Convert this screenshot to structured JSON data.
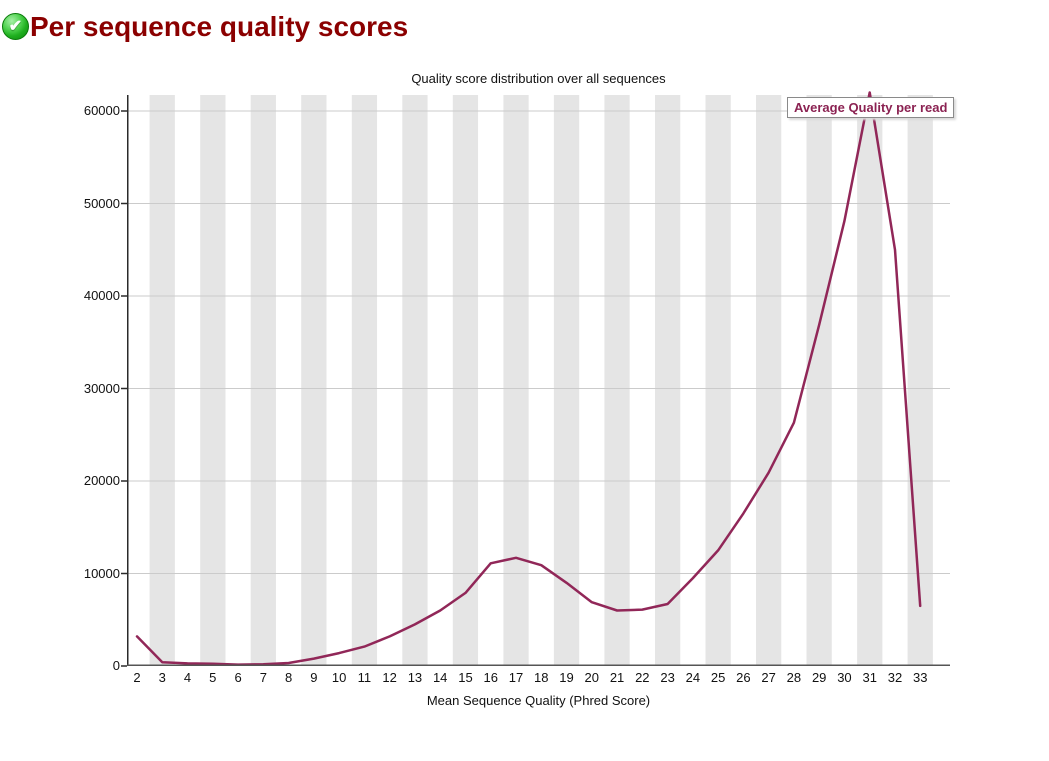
{
  "page": {
    "title": "Per sequence quality scores",
    "status": "pass",
    "status_icon": "green-check-icon"
  },
  "chart_data": {
    "type": "line",
    "title": "Quality score distribution over all sequences",
    "xlabel": "Mean Sequence Quality (Phred Score)",
    "ylabel": "",
    "legend": [
      "Average Quality per read"
    ],
    "legend_position": "top-right",
    "categories": [
      2,
      3,
      4,
      5,
      6,
      7,
      8,
      9,
      10,
      11,
      12,
      13,
      14,
      15,
      16,
      17,
      18,
      19,
      20,
      21,
      22,
      23,
      24,
      25,
      26,
      27,
      28,
      29,
      30,
      31,
      32,
      33
    ],
    "series": [
      {
        "name": "Average Quality per read",
        "values": [
          3200,
          400,
          280,
          250,
          150,
          200,
          320,
          800,
          1400,
          2100,
          3200,
          4500,
          6000,
          7900,
          11100,
          11700,
          10900,
          9000,
          6900,
          6000,
          6100,
          6700,
          9500,
          12500,
          16500,
          20900,
          26300,
          36900,
          48100,
          62000,
          45000,
          6500
        ]
      }
    ],
    "ylim": [
      0,
      61730
    ],
    "yticks": [
      0,
      10000,
      20000,
      30000,
      40000,
      50000,
      60000
    ],
    "grid": "horizontal",
    "background_bands": "alternating vertical stripes on odd x values",
    "colors": {
      "line": "#912758",
      "legend_text": "#8b2252",
      "band": "#e5e5e5",
      "gridline": "#cbcbcb",
      "y_axis": "#2a2a2a",
      "x_axis": "#555555",
      "header_red": "#8b0000",
      "pass_green": "#1faf1f"
    }
  }
}
